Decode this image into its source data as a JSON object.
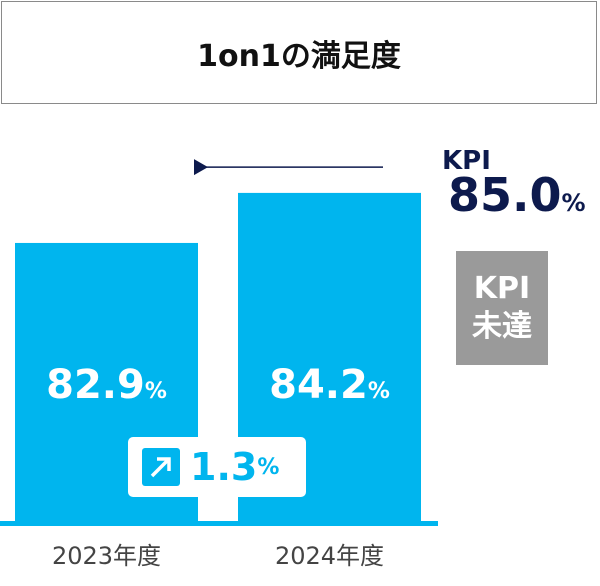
{
  "chart_data": {
    "type": "bar",
    "title": "1on1の満足度",
    "categories": [
      "2023年度",
      "2024年度"
    ],
    "values": [
      82.9,
      84.2
    ],
    "value_labels": [
      "82.9",
      "84.2"
    ],
    "unit": "%",
    "bar_color": "#00b5ee",
    "kpi": {
      "label": "KPI",
      "value": 85.0,
      "value_label": "85.0",
      "color": "#0d1a4d"
    },
    "change": {
      "value_label": "1.3",
      "direction": "up",
      "icon": "arrow-up-right-icon"
    },
    "status": {
      "line1": "KPI",
      "line2": "未達",
      "color": "#9a9a9a"
    },
    "ylim": [
      75.6,
      86
    ]
  }
}
